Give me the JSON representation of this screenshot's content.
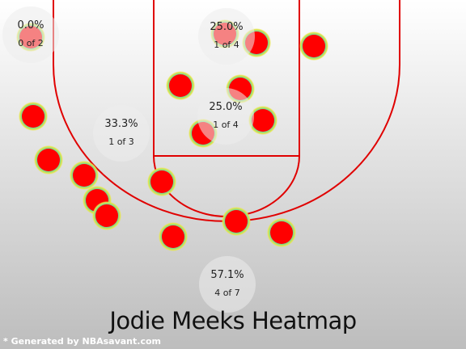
{
  "page": {
    "title": "Jodie Meeks Heatmap",
    "footer": "* Generated by NBAsavant.com"
  },
  "colors": {
    "line": "#e00000",
    "shot_fill": "#ff0000",
    "bg_top": "#ffffff",
    "bg_bottom": "#bdbdbd"
  },
  "chart_data": {
    "type": "scatter",
    "title": "Jodie Meeks Heatmap",
    "zones": [
      {
        "name": "left-corner-high",
        "pct": "0.0%",
        "count": "0 of 2"
      },
      {
        "name": "paint-top",
        "pct": "25.0%",
        "count": "1 of 4"
      },
      {
        "name": "left-wing",
        "pct": "33.3%",
        "count": "1 of 3"
      },
      {
        "name": "paint-mid",
        "pct": "25.0%",
        "count": "1 of 4"
      },
      {
        "name": "top-of-key",
        "pct": "57.1%",
        "count": "4 of 7"
      }
    ]
  }
}
